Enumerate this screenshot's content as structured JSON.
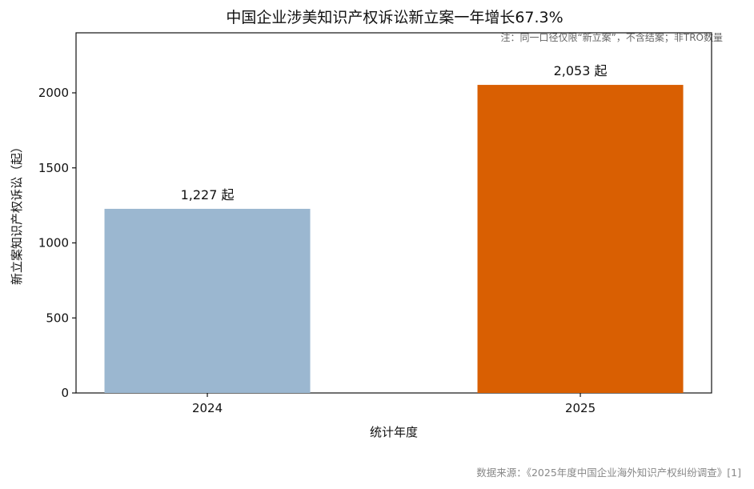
{
  "chart_data": {
    "type": "bar",
    "title": "中国企业涉美知识产权诉讼新立案一年增长67.3%",
    "note": "注：同一口径仅限“新立案”，不含结案；非TRO数量",
    "xlabel": "统计年度",
    "ylabel": "新立案知识产权诉讼（起）",
    "categories": [
      "2024",
      "2025"
    ],
    "values": [
      1227,
      2053
    ],
    "data_labels": [
      "1,227 起",
      "2,053 起"
    ],
    "colors": [
      "#9bb7d0",
      "#d95f02"
    ],
    "ylim": [
      0,
      2400
    ],
    "yticks": [
      0,
      500,
      1000,
      1500,
      2000
    ],
    "ytick_labels": [
      "0",
      "500",
      "1000",
      "1500",
      "2000"
    ],
    "grid": false,
    "legend": "none",
    "source": "数据来源：《2025年度中国企业海外知识产权纠纷调查》[1]"
  }
}
